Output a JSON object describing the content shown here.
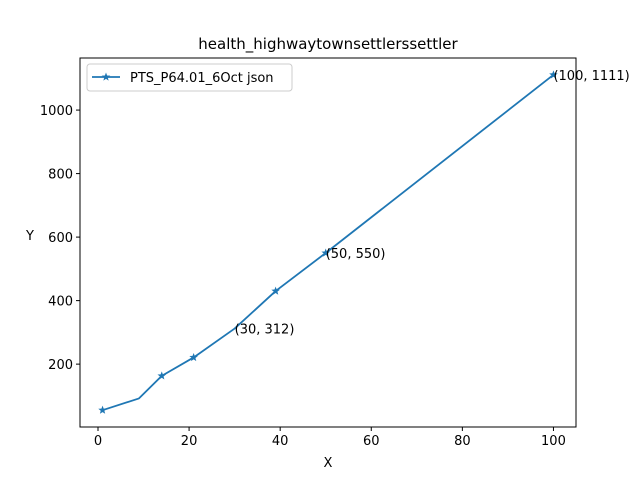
{
  "chart_data": {
    "type": "line",
    "title": "health_highwaytownsettlerssettler",
    "xlabel": "X",
    "ylabel": "Y",
    "xlim": [
      -3.95,
      104.95
    ],
    "ylim": [
      2,
      1164
    ],
    "xticks": [
      0,
      20,
      40,
      60,
      80,
      100
    ],
    "yticks": [
      200,
      400,
      600,
      800,
      1000
    ],
    "legend_position": "top-left",
    "grid": false,
    "series": [
      {
        "name": "PTS_P64.01_6Oct json",
        "color": "#1f77b4",
        "marker": "star",
        "points": [
          {
            "x": 1,
            "y": 55,
            "marker": true
          },
          {
            "x": 9,
            "y": 92,
            "marker": false
          },
          {
            "x": 14,
            "y": 163,
            "marker": true
          },
          {
            "x": 21,
            "y": 221,
            "marker": true
          },
          {
            "x": 30,
            "y": 312,
            "marker": false
          },
          {
            "x": 39,
            "y": 430,
            "marker": true
          },
          {
            "x": 50,
            "y": 550,
            "marker": true
          },
          {
            "x": 100,
            "y": 1111,
            "marker": true
          }
        ]
      }
    ],
    "annotations": [
      {
        "x": 30,
        "y": 312,
        "text": "(30, 312)"
      },
      {
        "x": 50,
        "y": 550,
        "text": "(50, 550)"
      },
      {
        "x": 100,
        "y": 1111,
        "text": "(100, 1111)"
      }
    ]
  }
}
